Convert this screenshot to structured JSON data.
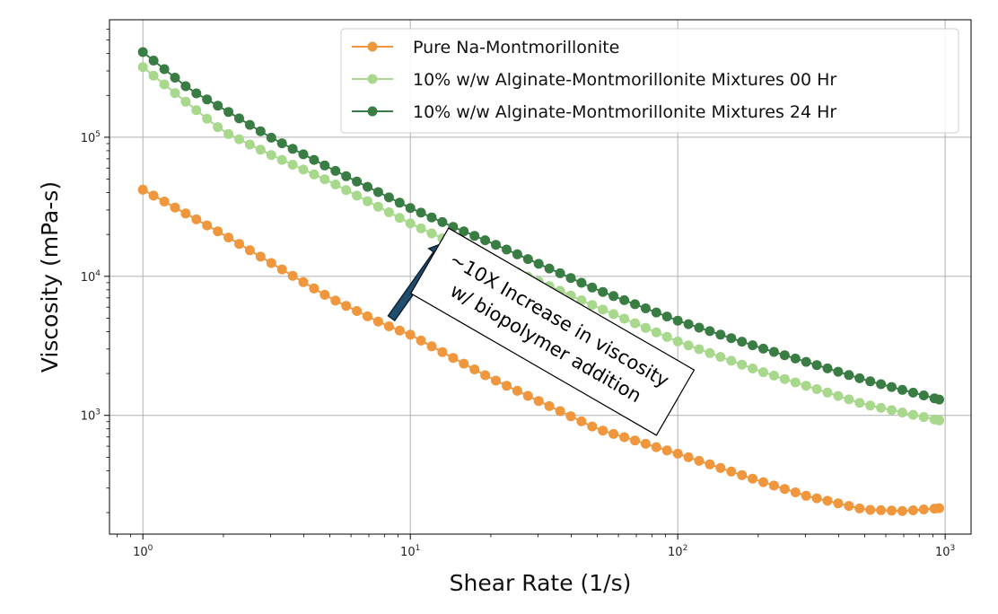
{
  "chart_data": {
    "type": "line",
    "xscale": "log",
    "yscale": "log",
    "xlabel": "Shear Rate (1/s)",
    "ylabel": "Viscosity (mPa-s)",
    "xlim": [
      0.75,
      1250
    ],
    "ylim": [
      140,
      700000
    ],
    "xticks": [
      {
        "value": 1,
        "base": "10",
        "exp": "0"
      },
      {
        "value": 10,
        "base": "10",
        "exp": "1"
      },
      {
        "value": 100,
        "base": "10",
        "exp": "2"
      },
      {
        "value": 1000,
        "base": "10",
        "exp": "3"
      }
    ],
    "yticks": [
      {
        "value": 1000,
        "base": "10",
        "exp": "3"
      },
      {
        "value": 10000,
        "base": "10",
        "exp": "4"
      },
      {
        "value": 100000,
        "base": "10",
        "exp": "5"
      }
    ],
    "grid": true,
    "legend_position": "top-right",
    "series": [
      {
        "name": "Pure Na-Montmorillonite",
        "color": "#F0963C",
        "x": [
          1,
          2,
          5,
          8,
          10,
          20,
          50,
          100,
          200,
          300,
          500,
          700,
          950
        ],
        "y": [
          42000,
          20000,
          7000,
          4500,
          3800,
          1850,
          800,
          530,
          340,
          265,
          210,
          205,
          215
        ]
      },
      {
        "name": "10% w/w Alginate-Montmorillonite Mixtures 00 Hr",
        "color": "#A8D88C",
        "x": [
          1,
          1.5,
          2,
          3,
          5,
          8,
          10,
          13,
          20,
          50,
          100,
          200,
          500,
          950
        ],
        "y": [
          320000,
          170000,
          110000,
          75000,
          48000,
          30000,
          24000,
          19000,
          13000,
          6000,
          3400,
          2100,
          1200,
          920
        ]
      },
      {
        "name": "10% w/w Alginate-Montmorillonite Mixtures 24 Hr",
        "color": "#3A7D44",
        "x": [
          1,
          1.5,
          2,
          3,
          5,
          10,
          15,
          20,
          50,
          100,
          200,
          500,
          950
        ],
        "y": [
          410000,
          220000,
          160000,
          100000,
          60000,
          31000,
          22000,
          17500,
          8000,
          4800,
          3100,
          1800,
          1300
        ]
      }
    ],
    "annotation": {
      "lines": [
        "~10X Increase in viscosity",
        "w/ biopolymer addition"
      ],
      "arrow_from": [
        8.5,
        5000
      ],
      "arrow_to": [
        13.5,
        17500
      ],
      "box_center": [
        34,
        4000
      ]
    }
  }
}
